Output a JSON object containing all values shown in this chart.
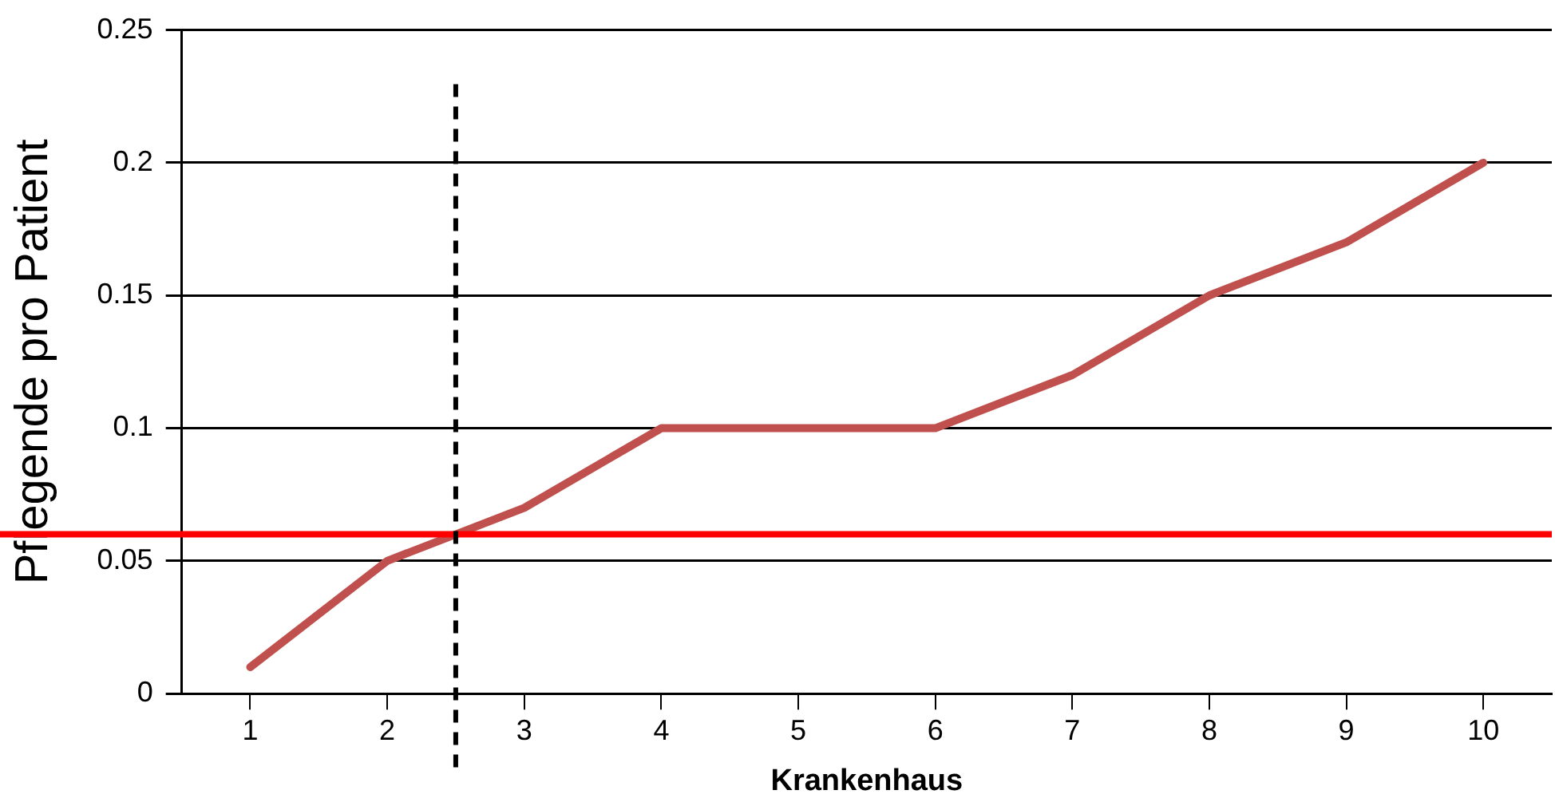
{
  "chart_data": {
    "type": "line",
    "xlabel": "Krankenhaus",
    "ylabel": "Pflegende pro Patient",
    "x": [
      1,
      2,
      3,
      4,
      5,
      6,
      7,
      8,
      9,
      10
    ],
    "series": [
      {
        "color": "#c0504d",
        "values": [
          0.01,
          0.05,
          0.07,
          0.1,
          0.1,
          0.1,
          0.12,
          0.15,
          0.17,
          0.2
        ]
      }
    ],
    "xlim": [
      0.5,
      10.5
    ],
    "xticks": [
      1,
      2,
      3,
      4,
      5,
      6,
      7,
      8,
      9,
      10
    ],
    "ylim": [
      0,
      0.25
    ],
    "yticks": [
      0,
      0.05,
      0.1,
      0.15,
      0.2,
      0.25
    ],
    "grid": "y",
    "legend": false,
    "marker": "none",
    "line_style": "solid",
    "ref_lines": [
      {
        "axis": "y",
        "value": 0.06,
        "color": "#ff0000",
        "line_style": "solid"
      },
      {
        "axis": "x",
        "value": 2.5,
        "color": "#000000",
        "line_style": "dashed"
      }
    ]
  }
}
